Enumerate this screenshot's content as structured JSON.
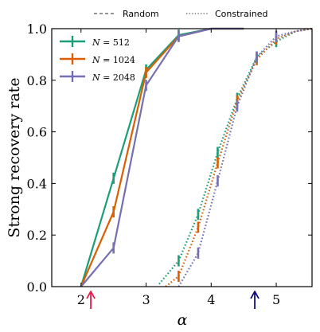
{
  "chart_data": {
    "type": "line",
    "xlabel": "α",
    "ylabel": "Strong recovery rate",
    "xlim": [
      1.55,
      5.55
    ],
    "ylim": [
      0.0,
      1.0
    ],
    "xticks": [
      2,
      3,
      4,
      5
    ],
    "yticks": [
      0.0,
      0.2,
      0.4,
      0.6,
      0.8,
      1.0
    ],
    "grid": false,
    "legend_position": "upper-left",
    "linestyle_legend": [
      {
        "label": "Random",
        "dash": "dashed"
      },
      {
        "label": "Constrained",
        "dash": "dotted"
      }
    ],
    "colors": {
      "N512": "#1b9e77",
      "N1024": "#d95f02",
      "N2048": "#7570b3"
    },
    "series": [
      {
        "name": "N = 512",
        "size_label": "512",
        "color_key": "N512",
        "style": "solid",
        "points": [
          [
            2.0,
            0.0
          ],
          [
            2.5,
            0.42
          ],
          [
            3.0,
            0.84
          ],
          [
            3.5,
            0.975
          ],
          [
            4.0,
            1.0
          ],
          [
            4.5,
            1.0
          ]
        ]
      },
      {
        "name": "N = 1024",
        "size_label": "1024",
        "color_key": "N1024",
        "style": "solid",
        "points": [
          [
            2.0,
            0.0
          ],
          [
            2.5,
            0.29
          ],
          [
            3.0,
            0.83
          ],
          [
            3.5,
            0.97
          ],
          [
            4.0,
            1.0
          ],
          [
            4.5,
            1.0
          ]
        ]
      },
      {
        "name": "N = 2048",
        "size_label": "2048",
        "color_key": "N2048",
        "style": "solid",
        "points": [
          [
            2.0,
            0.0
          ],
          [
            2.5,
            0.15
          ],
          [
            3.0,
            0.78
          ],
          [
            3.5,
            0.97
          ],
          [
            4.0,
            1.0
          ],
          [
            4.5,
            1.0
          ]
        ]
      },
      {
        "name": "N = 512 constrained",
        "color_key": "N512",
        "style": "dotted",
        "points": [
          [
            3.2,
            0.01
          ],
          [
            3.5,
            0.1
          ],
          [
            3.8,
            0.28
          ],
          [
            4.1,
            0.52
          ],
          [
            4.4,
            0.73
          ],
          [
            4.7,
            0.89
          ],
          [
            5.0,
            0.95
          ],
          [
            5.3,
            0.99
          ],
          [
            5.55,
            1.0
          ]
        ]
      },
      {
        "name": "N = 1024 constrained",
        "color_key": "N1024",
        "style": "dotted",
        "points": [
          [
            3.3,
            0.0
          ],
          [
            3.5,
            0.04
          ],
          [
            3.8,
            0.23
          ],
          [
            4.1,
            0.48
          ],
          [
            4.4,
            0.72
          ],
          [
            4.7,
            0.88
          ],
          [
            5.0,
            0.96
          ],
          [
            5.3,
            0.99
          ],
          [
            5.55,
            1.0
          ]
        ]
      },
      {
        "name": "N = 2048 constrained",
        "color_key": "N2048",
        "style": "dotted",
        "points": [
          [
            3.5,
            0.0
          ],
          [
            3.8,
            0.13
          ],
          [
            4.1,
            0.41
          ],
          [
            4.4,
            0.7
          ],
          [
            4.7,
            0.89
          ],
          [
            5.0,
            0.97
          ],
          [
            5.3,
            0.99
          ],
          [
            5.55,
            1.0
          ]
        ]
      }
    ],
    "annotations": [
      {
        "kind": "arrow",
        "x": 2.15,
        "color": "#e8194b"
      },
      {
        "kind": "arrow",
        "x": 4.67,
        "color": "#0a0a7a"
      }
    ]
  }
}
